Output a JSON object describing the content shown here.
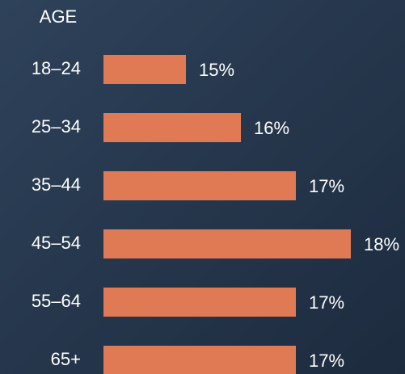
{
  "chart_data": {
    "type": "bar",
    "orientation": "horizontal",
    "title": "AGE",
    "categories": [
      "18–24",
      "25–34",
      "35–44",
      "45–54",
      "55–64",
      "65+"
    ],
    "values": [
      15,
      16,
      17,
      18,
      17,
      17
    ],
    "value_labels": [
      "15%",
      "16%",
      "17%",
      "18%",
      "17%",
      "17%"
    ],
    "color": "#e07a55"
  }
}
